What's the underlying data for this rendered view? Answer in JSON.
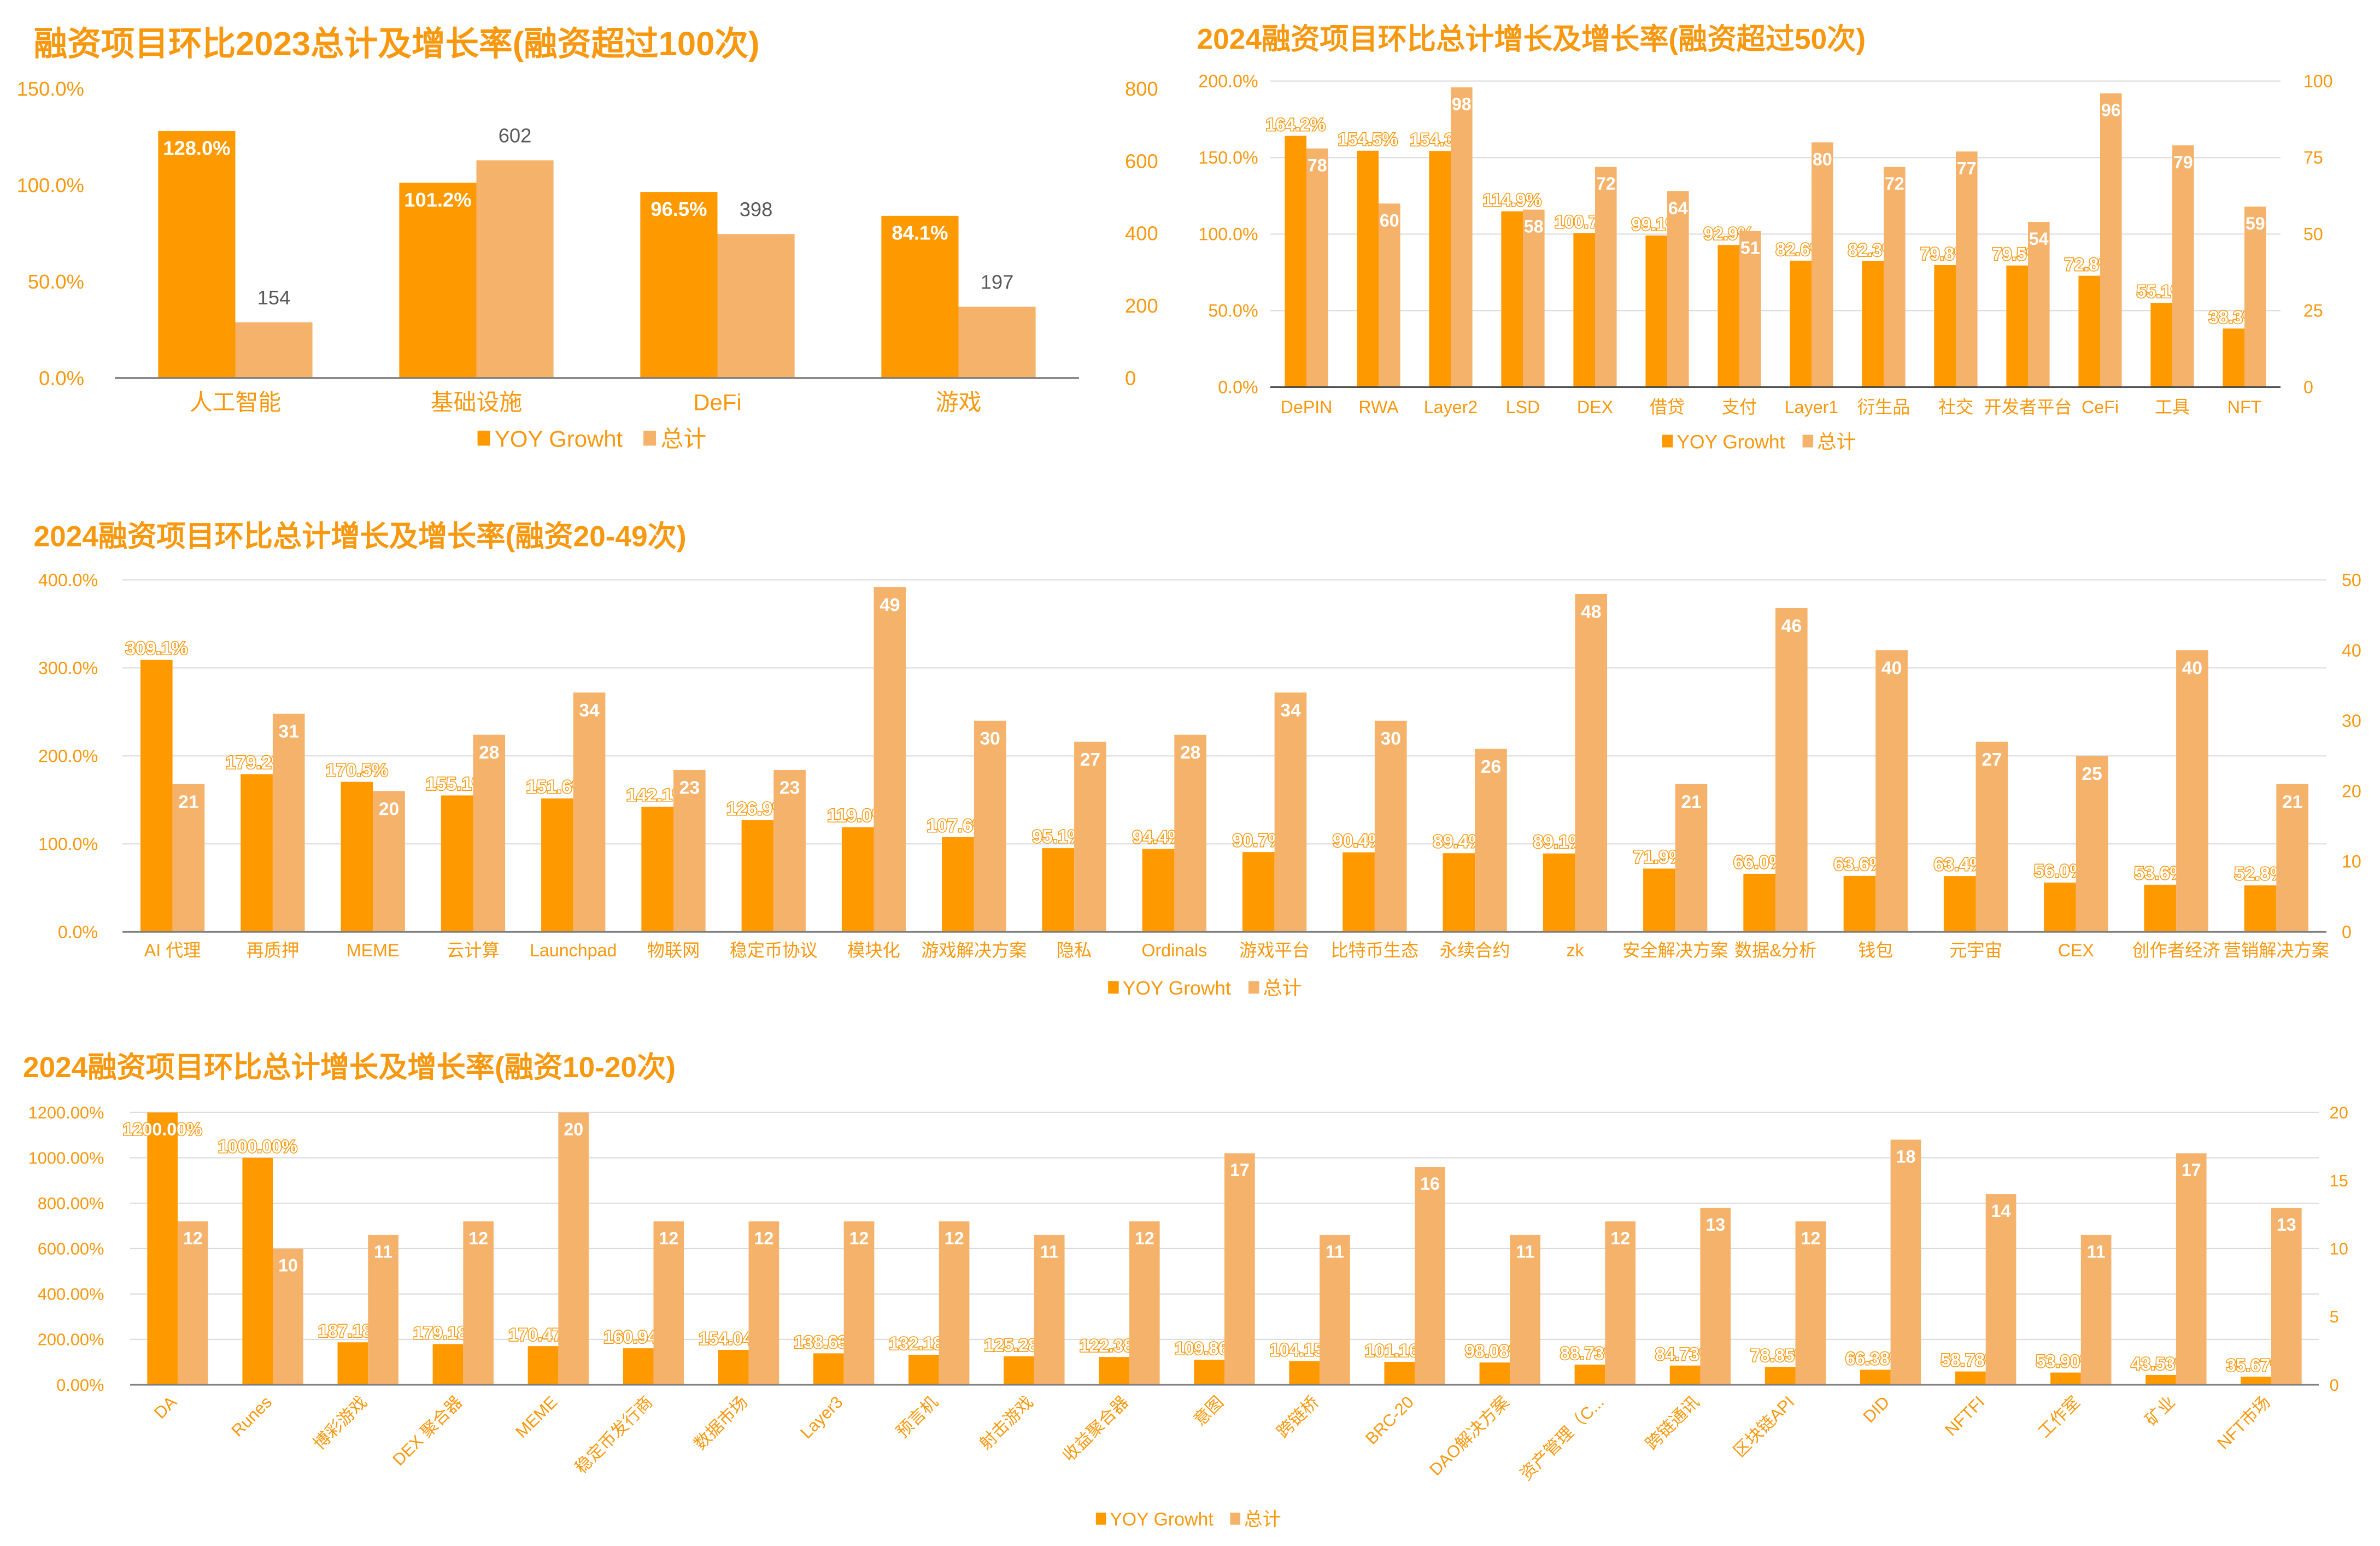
{
  "colors": {
    "yoy": "#FF9900",
    "total": "#F5B26B",
    "grid": "#D9D9D9",
    "axis": "#7F7F7F",
    "text": "#F7980F"
  },
  "chart_data": [
    {
      "type": "bar",
      "title": "融资项目环比2023总计及增长率(融资超过100次)",
      "categories": [
        "人工智能",
        "基础设施",
        "DeFi",
        "游戏"
      ],
      "series": [
        {
          "name": "YOY Growht",
          "axis": "left",
          "values": [
            128.0,
            101.2,
            96.5,
            84.1
          ],
          "labels": [
            "128.0%",
            "101.2%",
            "96.5%",
            "84.1%"
          ]
        },
        {
          "name": "总计",
          "axis": "right",
          "values": [
            154,
            602,
            398,
            197
          ],
          "labels": [
            "154",
            "602",
            "398",
            "197"
          ]
        }
      ],
      "ylim": [
        0,
        150
      ],
      "y_ticks": [
        "0.0%",
        "50.0%",
        "100.0%",
        "150.0%"
      ],
      "y2lim": [
        0,
        800
      ],
      "y2_ticks": [
        "0",
        "200",
        "400",
        "600",
        "800"
      ],
      "grid": false,
      "legend": "bottom"
    },
    {
      "type": "bar",
      "title": "2024融资项目环比总计增长及增长率(融资超过50次)",
      "categories": [
        "DePIN",
        "RWA",
        "Layer2",
        "LSD",
        "DEX",
        "借贷",
        "支付",
        "Layer1",
        "衍生品",
        "社交",
        "开发者平台",
        "CeFi",
        "工具",
        "NFT"
      ],
      "series": [
        {
          "name": "YOY Growht",
          "axis": "left",
          "values": [
            164.2,
            154.5,
            154.3,
            114.9,
            100.7,
            99.1,
            92.9,
            82.6,
            82.3,
            79.8,
            79.5,
            72.8,
            55.1,
            38.3
          ],
          "labels": [
            "164.2%",
            "154.5%",
            "154.3%",
            "114.9%",
            "100.7%",
            "99.1%",
            "92.9%",
            "82.6%",
            "82.3%",
            "79.8%",
            "79.5%",
            "72.8%",
            "55.1%",
            "38.3%"
          ]
        },
        {
          "name": "总计",
          "axis": "right",
          "values": [
            78,
            60,
            98,
            58,
            72,
            64,
            51,
            80,
            72,
            77,
            54,
            96,
            79,
            59
          ],
          "labels": [
            "78",
            "60",
            "98",
            "58",
            "72",
            "64",
            "51",
            "80",
            "72",
            "77",
            "54",
            "96",
            "79",
            "59"
          ]
        }
      ],
      "ylim": [
        0,
        200
      ],
      "y_ticks": [
        "0.0%",
        "50.0%",
        "100.0%",
        "150.0%",
        "200.0%"
      ],
      "y2lim": [
        0,
        100
      ],
      "y2_ticks": [
        "0",
        "25",
        "50",
        "75",
        "100"
      ],
      "grid": true,
      "legend": "bottom"
    },
    {
      "type": "bar",
      "title": "2024融资项目环比总计增长及增长率(融资20-49次)",
      "categories": [
        "AI 代理",
        "再质押",
        "MEME",
        "云计算",
        "Launchpad",
        "物联网",
        "稳定币协议",
        "模块化",
        "游戏解决方案",
        "隐私",
        "Ordinals",
        "游戏平台",
        "比特币生态",
        "永续合约",
        "zk",
        "安全解决方案",
        "数据&分析",
        "钱包",
        "元宇宙",
        "CEX",
        "创作者经济",
        "营销解决方案"
      ],
      "series": [
        {
          "name": "YOY Growht",
          "axis": "left",
          "values": [
            309.1,
            179.2,
            170.5,
            155.1,
            151.6,
            142.1,
            126.9,
            119.0,
            107.6,
            95.1,
            94.4,
            90.7,
            90.4,
            89.4,
            89.1,
            71.9,
            66.0,
            63.6,
            63.4,
            56.0,
            53.6,
            52.8
          ],
          "labels": [
            "309.1%",
            "179.2%",
            "170.5%",
            "155.1%",
            "151.6%",
            "142.1%",
            "126.9%",
            "119.0%",
            "107.6%",
            "95.1%",
            "94.4%",
            "90.7%",
            "90.4%",
            "89.4%",
            "89.1%",
            "71.9%",
            "66.0%",
            "63.6%",
            "63.4%",
            "56.0%",
            "53.6%",
            "52.8%"
          ]
        },
        {
          "name": "总计",
          "axis": "right",
          "values": [
            21,
            31,
            20,
            28,
            34,
            23,
            23,
            49,
            30,
            27,
            28,
            34,
            30,
            26,
            48,
            21,
            46,
            40,
            27,
            25,
            40,
            21
          ],
          "labels": [
            "21",
            "31",
            "20",
            "28",
            "34",
            "23",
            "23",
            "49",
            "30",
            "27",
            "28",
            "34",
            "30",
            "26",
            "48",
            "21",
            "46",
            "40",
            "27",
            "25",
            "40",
            "21"
          ]
        }
      ],
      "ylim": [
        0,
        400
      ],
      "y_ticks": [
        "0.0%",
        "100.0%",
        "200.0%",
        "300.0%",
        "400.0%"
      ],
      "y2lim": [
        0,
        50
      ],
      "y2_ticks": [
        "0",
        "10",
        "20",
        "30",
        "40",
        "50"
      ],
      "grid": true,
      "legend": "bottom"
    },
    {
      "type": "bar",
      "title": "2024融资项目环比总计增长及增长率(融资10-20次)",
      "categories": [
        "DA",
        "Runes",
        "博彩游戏",
        "DEX 聚合器",
        "MEME",
        "稳定币发行商",
        "数据市场",
        "Layer3",
        "预言机",
        "射击游戏",
        "收益聚合器",
        "意图",
        "跨链桥",
        "BRC-20",
        "DAO解决方案",
        "资产管理（C...",
        "跨链通讯",
        "区块链API",
        "DID",
        "NFTFI",
        "工作室",
        "矿业",
        "NFT市场"
      ],
      "series": [
        {
          "name": "YOY Growht",
          "axis": "left",
          "values": [
            1200.0,
            1000.0,
            187.18,
            179.18,
            170.47,
            160.94,
            154.04,
            138.63,
            132.18,
            125.28,
            122.38,
            109.86,
            104.15,
            101.16,
            98.08,
            88.73,
            84.73,
            78.85,
            66.38,
            58.78,
            53.9,
            43.53,
            35.67
          ],
          "labels": [
            "1200.00%",
            "1000.00%",
            "187.18%",
            "179.18%",
            "170.47%",
            "160.94%",
            "154.04%",
            "138.63%",
            "132.18%",
            "125.28%",
            "122.38%",
            "109.86%",
            "104.15%",
            "101.16%",
            "98.08%",
            "88.73%",
            "84.73%",
            "78.85%",
            "66.38%",
            "58.78%",
            "53.90%",
            "43.53%",
            "35.67%"
          ]
        },
        {
          "name": "总计",
          "axis": "right",
          "values": [
            12,
            10,
            11,
            12,
            20,
            12,
            12,
            12,
            12,
            11,
            12,
            17,
            11,
            16,
            11,
            12,
            13,
            12,
            18,
            14,
            11,
            17,
            13
          ],
          "labels": [
            "12",
            "10",
            "11",
            "12",
            "20",
            "12",
            "12",
            "12",
            "12",
            "11",
            "12",
            "17",
            "11",
            "16",
            "11",
            "12",
            "13",
            "12",
            "18",
            "14",
            "11",
            "17",
            "13"
          ]
        }
      ],
      "ylim": [
        0,
        1200
      ],
      "y_ticks": [
        "0.00%",
        "200.00%",
        "400.00%",
        "600.00%",
        "800.00%",
        "1000.00%",
        "1200.00%"
      ],
      "y2lim": [
        0,
        20
      ],
      "y2_ticks": [
        "0",
        "5",
        "10",
        "15",
        "20"
      ],
      "grid": true,
      "legend": "bottom"
    }
  ]
}
